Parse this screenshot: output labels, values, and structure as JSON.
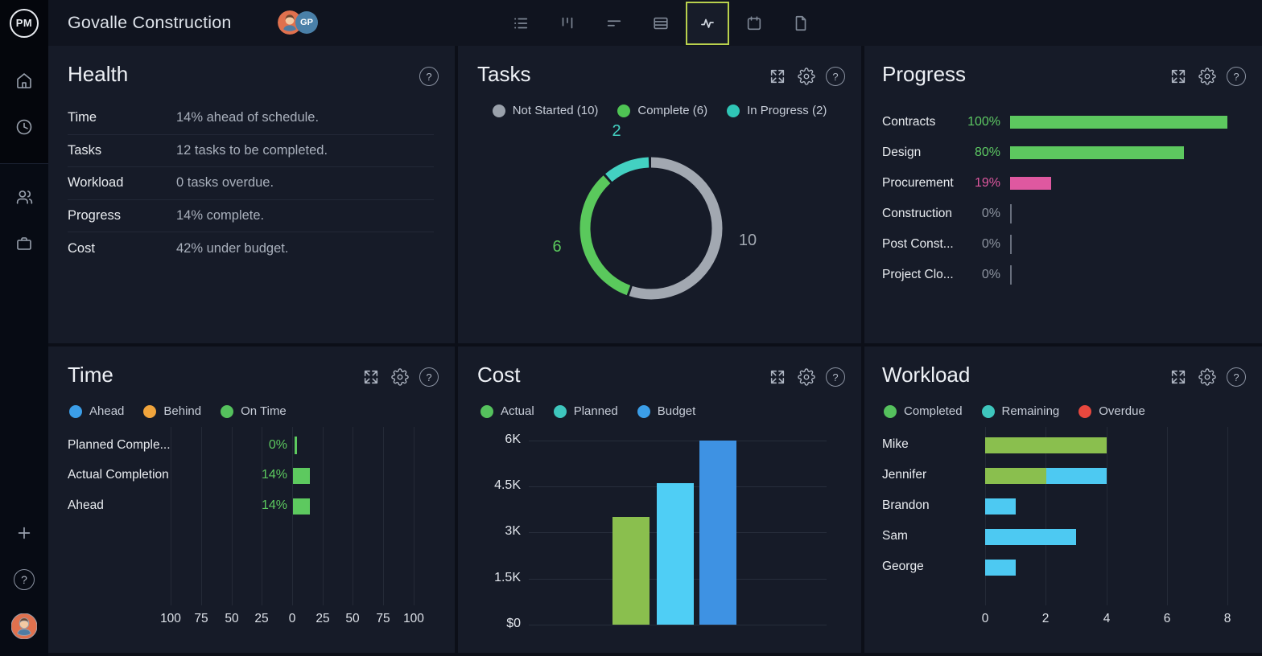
{
  "topbar": {
    "logo": "PM",
    "title": "Govalle Construction",
    "avatar_initials": "GP",
    "selected_tool_border": "#b9d14d",
    "tools": [
      {
        "name": "list-view"
      },
      {
        "name": "board-view"
      },
      {
        "name": "gantt-view"
      },
      {
        "name": "table-view"
      },
      {
        "name": "dashboard-view",
        "selected": true
      },
      {
        "name": "calendar-view"
      },
      {
        "name": "docs-view"
      }
    ]
  },
  "sidebar": {
    "icons": [
      "home",
      "recent",
      "team",
      "portfolio",
      "add",
      "help"
    ],
    "help_glyph": "?"
  },
  "panels": {
    "health": {
      "title": "Health",
      "rows": [
        {
          "label": "Time",
          "value": "14% ahead of schedule."
        },
        {
          "label": "Tasks",
          "value": "12 tasks to be completed."
        },
        {
          "label": "Workload",
          "value": "0 tasks overdue."
        },
        {
          "label": "Progress",
          "value": "14% complete."
        },
        {
          "label": "Cost",
          "value": "42% under budget."
        }
      ]
    },
    "tasks": {
      "title": "Tasks",
      "slice_labels": [
        {
          "text": "2",
          "color": "#43d1c2"
        },
        {
          "text": "10",
          "color": "#a2a8b1"
        },
        {
          "text": "6",
          "color": "#5ac95c"
        }
      ]
    },
    "progress": {
      "title": "Progress"
    },
    "time": {
      "title": "Time"
    },
    "cost": {
      "title": "Cost"
    },
    "workload": {
      "title": "Workload"
    }
  },
  "chart_data": [
    {
      "id": "tasks",
      "type": "pie",
      "donut": true,
      "title": "Tasks",
      "labels": [
        "Not Started",
        "Complete",
        "In Progress"
      ],
      "values": [
        10,
        6,
        2
      ],
      "colors": [
        "#a2a8b1",
        "#5ac95c",
        "#43d1c2"
      ],
      "legend": [
        "Not Started (10)",
        "Complete (6)",
        "In Progress (2)"
      ],
      "legend_colors": [
        "#9aa1ab",
        "#4fc454",
        "#2fc5b6"
      ],
      "total": 18
    },
    {
      "id": "progress",
      "type": "bar",
      "orientation": "horizontal",
      "title": "Progress",
      "categories": [
        "Contracts",
        "Design",
        "Procurement",
        "Construction",
        "Post Const...",
        "Project Clo..."
      ],
      "values": [
        100,
        80,
        19,
        0,
        0,
        0
      ],
      "value_labels": [
        "100%",
        "80%",
        "19%",
        "0%",
        "0%",
        "0%"
      ],
      "bar_colors": [
        "#5dc85f",
        "#5dc85f",
        "#df58a0",
        "none",
        "none",
        "none"
      ],
      "label_colors": [
        "#5dc963",
        "#5dc963",
        "#df58a0",
        "#8d94a0",
        "#8d94a0",
        "#8d94a0"
      ],
      "xlim": [
        0,
        100
      ]
    },
    {
      "id": "time",
      "type": "bar",
      "orientation": "horizontal",
      "title": "Time",
      "categories": [
        "Planned Comple...",
        "Actual Completion",
        "Ahead"
      ],
      "values": [
        0,
        14,
        14
      ],
      "value_labels": [
        "0%",
        "14%",
        "14%"
      ],
      "bar_color": "#5dc95f",
      "axis_ticks": [
        "100",
        "75",
        "50",
        "25",
        "0",
        "25",
        "50",
        "75",
        "100"
      ],
      "xlim": [
        -100,
        100
      ],
      "legend": [
        {
          "label": "Ahead",
          "color": "#3b9ee8"
        },
        {
          "label": "Behind",
          "color": "#f0a43c"
        },
        {
          "label": "On Time",
          "color": "#55c15d"
        }
      ]
    },
    {
      "id": "cost",
      "type": "bar",
      "title": "Cost",
      "categories": [
        "Actual",
        "Planned",
        "Budget"
      ],
      "values": [
        3500,
        4600,
        6000
      ],
      "bar_colors": [
        "#8abf4e",
        "#4fcef5",
        "#3e92e3"
      ],
      "yticks": [
        "6K",
        "4.5K",
        "3K",
        "1.5K",
        "$0"
      ],
      "ylim": [
        0,
        6000
      ],
      "legend": [
        {
          "label": "Actual",
          "color": "#55c15d"
        },
        {
          "label": "Planned",
          "color": "#3ec6bd"
        },
        {
          "label": "Budget",
          "color": "#3b9ee8"
        }
      ]
    },
    {
      "id": "workload",
      "type": "bar",
      "orientation": "horizontal",
      "stacked": true,
      "title": "Workload",
      "categories": [
        "Mike",
        "Jennifer",
        "Brandon",
        "Sam",
        "George"
      ],
      "series": [
        {
          "name": "Completed",
          "color": "#8abf4e",
          "values": [
            4,
            2,
            0,
            0,
            0
          ]
        },
        {
          "name": "Remaining",
          "color": "#4dc9f2",
          "values": [
            0,
            2,
            1,
            3,
            1
          ]
        },
        {
          "name": "Overdue",
          "color": "#e8483e",
          "values": [
            0,
            0,
            0,
            0,
            0
          ]
        }
      ],
      "xticks": [
        "0",
        "2",
        "4",
        "6",
        "8"
      ],
      "xlim": [
        0,
        8
      ],
      "legend": [
        {
          "label": "Completed",
          "color": "#55c15d"
        },
        {
          "label": "Remaining",
          "color": "#3ec6bd"
        },
        {
          "label": "Overdue",
          "color": "#e8483e"
        }
      ]
    }
  ]
}
